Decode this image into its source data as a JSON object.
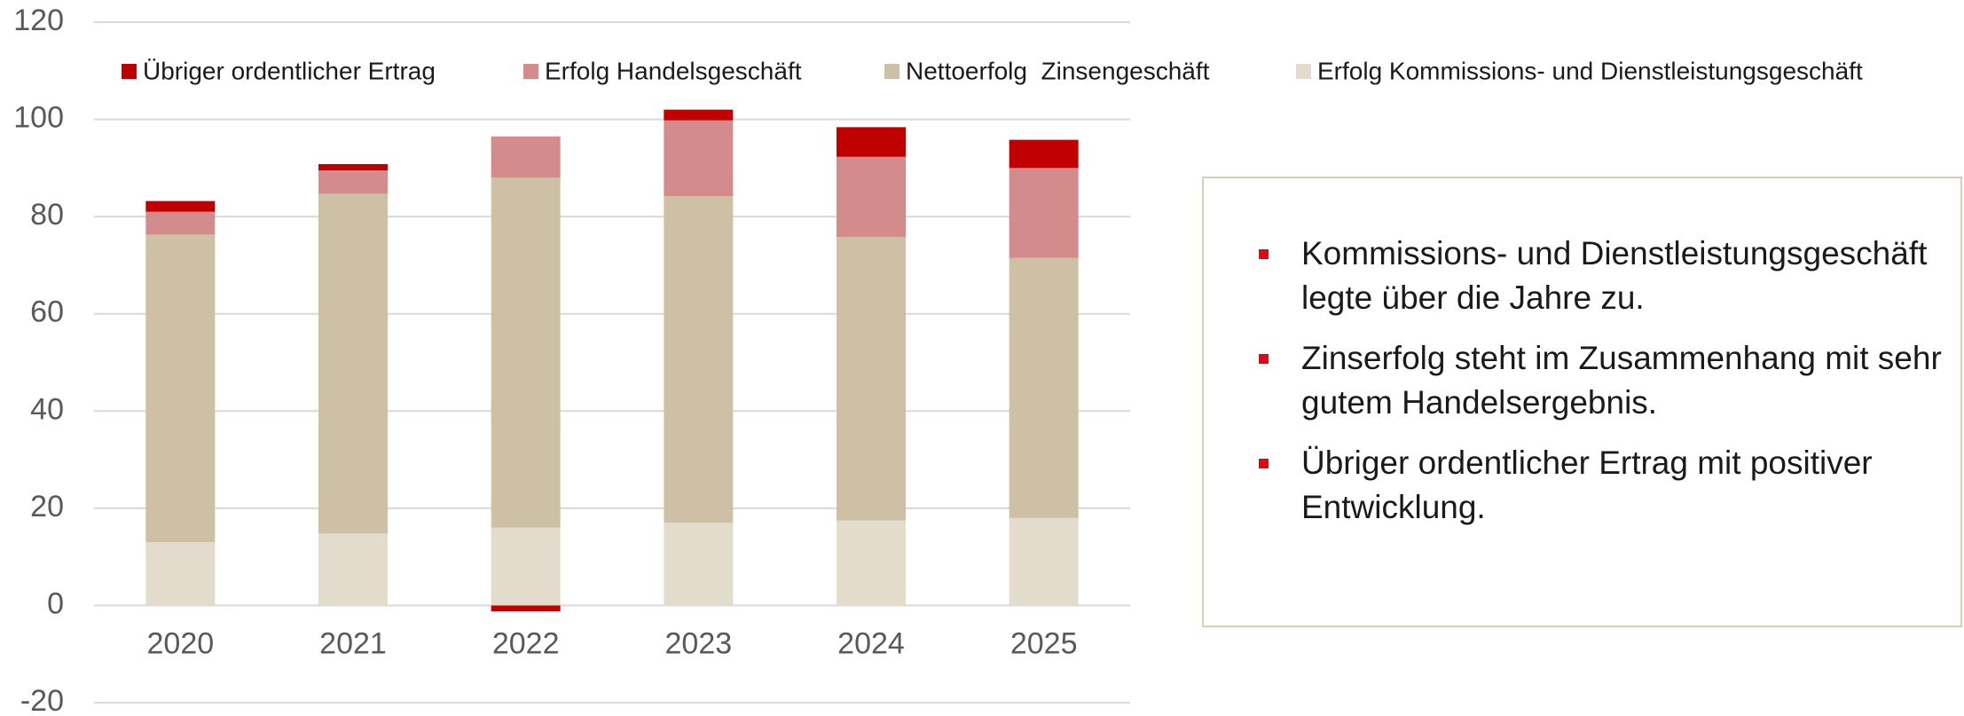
{
  "chart_data": {
    "type": "stacked_bar",
    "categories": [
      "2020",
      "2021",
      "2022",
      "2023",
      "2024",
      "2025"
    ],
    "series": [
      {
        "name": "Erfolg Kommissions- und Dienstleistungsgeschäft",
        "color": "#e3dccc",
        "values": [
          13,
          14.8,
          16,
          17,
          17.5,
          18
        ]
      },
      {
        "name": "Nettoerfolg  Zinsengeschäft",
        "color": "#cdc0a5",
        "values": [
          63.3,
          69.9,
          72,
          67.2,
          58.3,
          53.5
        ]
      },
      {
        "name": "Erfolg Handelsgeschäft",
        "color": "#d38b8b",
        "values": [
          4.7,
          4.8,
          8.5,
          15.6,
          16.5,
          18.5
        ]
      },
      {
        "name": "Übriger ordentlicher Ertrag",
        "color": "#c00000",
        "values": [
          2.2,
          1.3,
          -1.2,
          2.2,
          6.1,
          5.8
        ]
      }
    ],
    "legend_order": [
      3,
      2,
      1,
      0
    ],
    "ylim": [
      -20,
      120
    ],
    "yticks": [
      -20,
      0,
      20,
      40,
      60,
      80,
      100,
      120
    ],
    "grid": true,
    "annotations": [
      "Kommissions- und Dienstleistungsgeschäft legte über die Jahre zu.",
      "Zinserfolg steht im Zusammenhang mit sehr gutem Handelsergebnis.",
      "Übriger ordentlicher Ertrag mit positiver Entwicklung."
    ]
  }
}
